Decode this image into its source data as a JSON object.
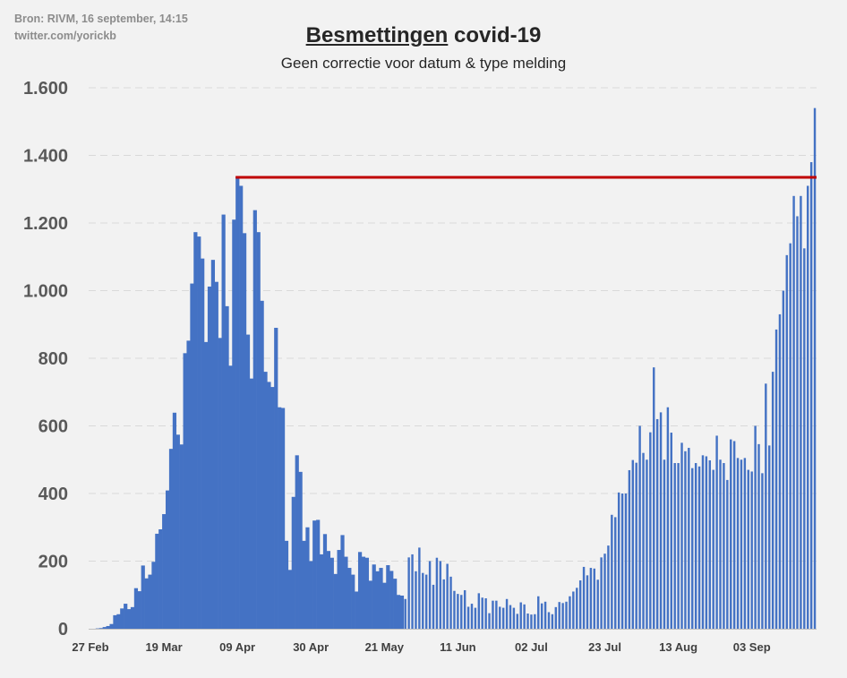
{
  "source": {
    "line1": "Bron: RIVM, 16 september, 14:15",
    "line2": "twitter.com/yorickb"
  },
  "colors": {
    "bars": "#4472c4",
    "reference_line": "#c00000",
    "grid": "#d9d9d9",
    "background": "#f2f2f2"
  },
  "chart_data": {
    "type": "bar",
    "title_underlined": "Besmettingen",
    "title_rest": " covid-19",
    "subtitle": "Geen correctie voor datum & type melding",
    "xlabel": "",
    "ylabel": "",
    "ylim": [
      0,
      1600
    ],
    "yticks": [
      0,
      200,
      400,
      600,
      800,
      1000,
      1200,
      1400,
      1600
    ],
    "ytick_labels": [
      "0",
      "200",
      "400",
      "600",
      "800",
      "1.000",
      "1.200",
      "1.400",
      "1.600"
    ],
    "xtick_labels": [
      "27 Feb",
      "19 Mar",
      "09 Apr",
      "30 Apr",
      "21 May",
      "11 Jun",
      "02 Jul",
      "23 Jul",
      "13 Aug",
      "03 Sep"
    ],
    "xtick_every_days": 21,
    "grid": true,
    "legend": "none",
    "reference_line_value": 1335,
    "series": [
      {
        "values": [
          0,
          0,
          1,
          2,
          5,
          8,
          14,
          40,
          43,
          60,
          74,
          58,
          64,
          120,
          111,
          187,
          149,
          160,
          198,
          281,
          294,
          339,
          409,
          532,
          639,
          574,
          545,
          815,
          852,
          1021,
          1173,
          1160,
          1095,
          848,
          1012,
          1091,
          1026,
          860,
          1225,
          954,
          778,
          1210,
          1337,
          1310,
          1170,
          870,
          740,
          1238,
          1173,
          970,
          760,
          730,
          715,
          890,
          655,
          653,
          260,
          174,
          390,
          513,
          464,
          260,
          300,
          200,
          320,
          322,
          220,
          280,
          230,
          210,
          162,
          233,
          277,
          213,
          180,
          160,
          110,
          227,
          213,
          210,
          142,
          190,
          170,
          180,
          136,
          188,
          171,
          148,
          100,
          98,
          88,
          211,
          220,
          170,
          240,
          165,
          160,
          200,
          130,
          210,
          200,
          146,
          192,
          154,
          112,
          103,
          100,
          114,
          65,
          74,
          62,
          105,
          92,
          90,
          46,
          83,
          83,
          65,
          62,
          88,
          70,
          62,
          44,
          78,
          72,
          45,
          42,
          43,
          96,
          75,
          80,
          49,
          43,
          64,
          79,
          76,
          80,
          96,
          110,
          121,
          143,
          183,
          158,
          180,
          178,
          145,
          211,
          222,
          246,
          337,
          330,
          403,
          400,
          400,
          469,
          499,
          491,
          600,
          520,
          500,
          581,
          773,
          620,
          640,
          500,
          655,
          580,
          490,
          490,
          550,
          525,
          535,
          475,
          490,
          480,
          513,
          510,
          498,
          470,
          571,
          500,
          490,
          440,
          560,
          555,
          505,
          500,
          505,
          470,
          465,
          600,
          546,
          460,
          725,
          542,
          760,
          885,
          930,
          1000,
          1105,
          1140,
          1280,
          1220,
          1280,
          1125,
          1310,
          1380,
          1540
        ]
      }
    ]
  }
}
